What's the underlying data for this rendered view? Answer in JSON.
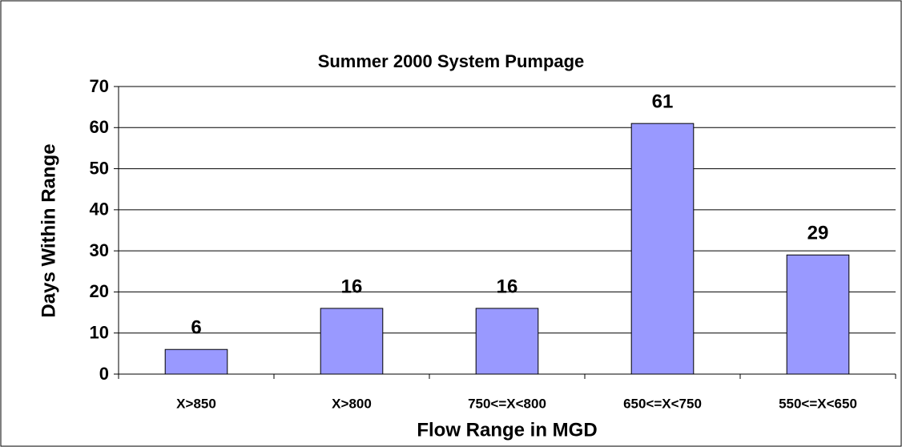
{
  "chart_data": {
    "type": "bar",
    "title": "Summer 2000 System Pumpage",
    "x_label": "Flow Range in MGD",
    "y_label": "Days Within Range",
    "categories": [
      "X>850",
      "X>800",
      "750<=X<800",
      "650<=X<750",
      "550<=X<650"
    ],
    "values": [
      6,
      16,
      16,
      61,
      29
    ],
    "color": "#9999ff",
    "ylim": [
      0,
      70
    ],
    "yticks": [
      0,
      10,
      20,
      30,
      40,
      50,
      60,
      70
    ],
    "grid": true
  }
}
